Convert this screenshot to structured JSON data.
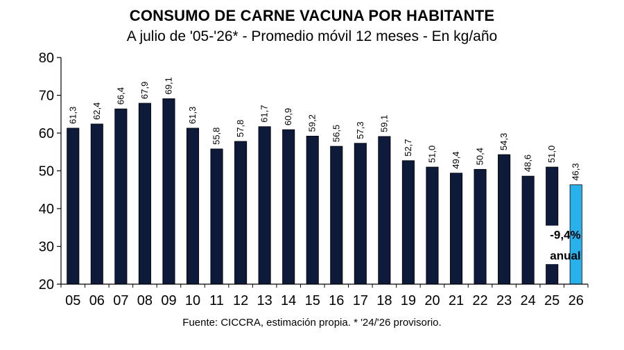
{
  "chart_data": {
    "type": "bar",
    "title": "CONSUMO DE CARNE VACUNA POR HABITANTE",
    "subtitle": "A julio de '05-'26* - Promedio móvil 12 meses -  En kg/año",
    "xlabel": "",
    "ylabel": "",
    "ylim": [
      20,
      80
    ],
    "yticks": [
      "20",
      "30",
      "40",
      "50",
      "60",
      "70",
      "80"
    ],
    "grid": false,
    "legend": "none",
    "categories": [
      "05",
      "06",
      "07",
      "08",
      "09",
      "10",
      "11",
      "12",
      "13",
      "14",
      "15",
      "16",
      "17",
      "18",
      "19",
      "20",
      "21",
      "22",
      "23",
      "24",
      "25",
      "26"
    ],
    "values": [
      61.3,
      62.4,
      66.4,
      67.9,
      69.1,
      61.3,
      55.8,
      57.8,
      61.7,
      60.9,
      59.2,
      56.5,
      57.3,
      59.1,
      52.7,
      51.0,
      49.4,
      50.4,
      54.3,
      48.6,
      51.0,
      46.3
    ],
    "value_labels": [
      "61,3",
      "62,4",
      "66,4",
      "67,9",
      "69,1",
      "61,3",
      "55,8",
      "57,8",
      "61,7",
      "60,9",
      "59,2",
      "56,5",
      "57,3",
      "59,1",
      "52,7",
      "51,0",
      "49,4",
      "50,4",
      "54,3",
      "48,6",
      "51,0",
      "46,3"
    ],
    "colors": {
      "bar": "#0d1a3a",
      "highlight_bar": "#29b1ec",
      "bar_edge": "#000000"
    },
    "highlight_category": "26",
    "annotation": {
      "lines": [
        "-9,4%",
        "anual"
      ]
    },
    "source": "Fuente: CICCRA, estimación propia. * '24/'26 provisorio."
  }
}
